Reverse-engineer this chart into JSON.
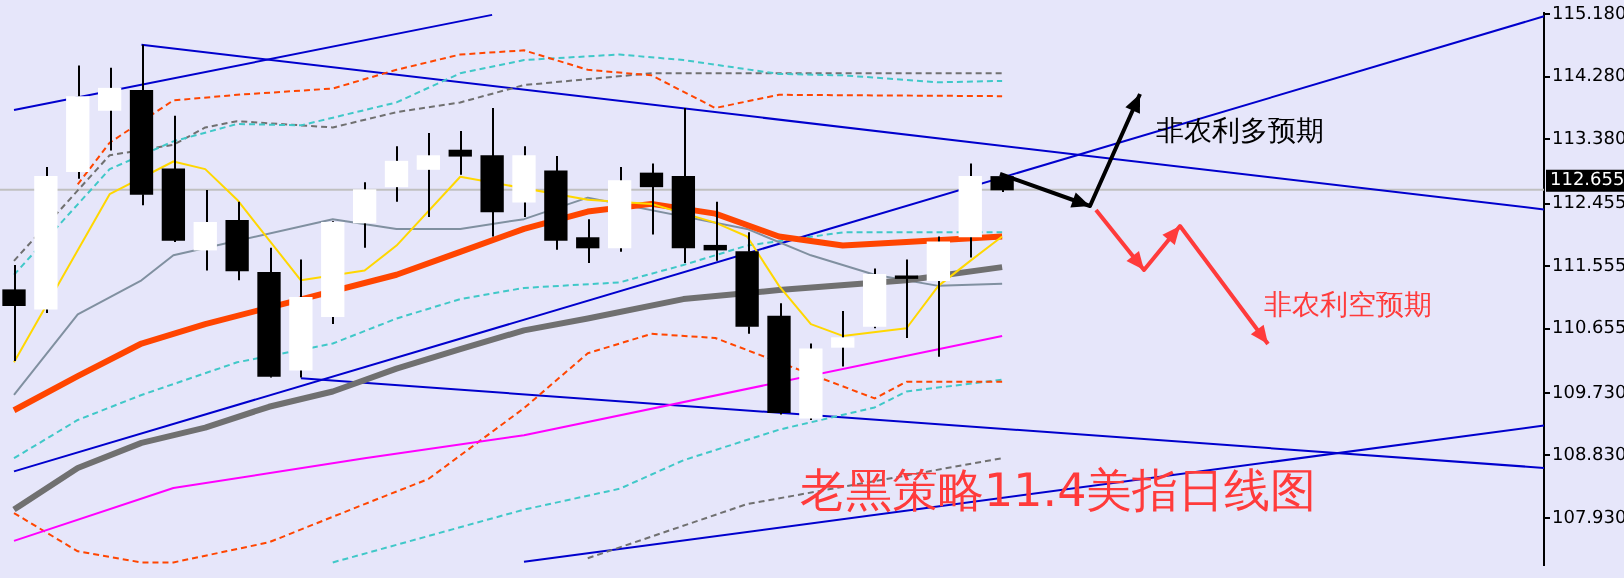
{
  "chart_data": {
    "type": "candlestick",
    "title": "老黑策略11.4美指日线图",
    "annotations": [
      "非农利多预期",
      "非农利空预期"
    ],
    "categories": [
      null,
      null,
      null,
      null,
      null,
      null,
      null,
      null,
      null,
      null,
      null,
      null,
      null,
      null,
      null,
      null,
      null,
      null,
      null,
      null,
      null,
      null,
      null,
      null,
      null,
      null,
      null,
      null,
      null,
      null,
      null,
      null,
      null,
      null,
      null,
      null,
      null,
      null,
      null,
      null,
      null,
      null,
      null,
      null,
      null,
      null,
      null,
      null,
      null
    ],
    "ohlc": [
      [
        111.21,
        111.57,
        110.19,
        110.99
      ],
      [
        110.94,
        112.98,
        110.88,
        112.84
      ],
      [
        112.92,
        114.44,
        112.81,
        113.99
      ],
      [
        113.8,
        114.41,
        113.22,
        114.11
      ],
      [
        114.08,
        114.74,
        112.43,
        112.59
      ],
      [
        112.95,
        113.72,
        111.9,
        111.93
      ],
      [
        111.79,
        112.65,
        111.49,
        112.18
      ],
      [
        112.21,
        112.48,
        111.35,
        111.49
      ],
      [
        111.46,
        111.82,
        109.95,
        109.97
      ],
      [
        110.06,
        111.65,
        109.95,
        111.1
      ],
      [
        110.83,
        112.2,
        110.72,
        112.18
      ],
      [
        112.18,
        112.76,
        111.82,
        112.65
      ],
      [
        112.7,
        113.28,
        112.48,
        113.06
      ],
      [
        112.95,
        113.47,
        112.26,
        113.14
      ],
      [
        113.22,
        113.5,
        112.87,
        113.14
      ],
      [
        113.14,
        113.83,
        111.98,
        112.34
      ],
      [
        112.48,
        113.28,
        112.26,
        113.14
      ],
      [
        112.92,
        113.14,
        111.79,
        111.93
      ],
      [
        111.96,
        112.23,
        111.6,
        111.82
      ],
      [
        111.82,
        112.98,
        111.76,
        112.78
      ],
      [
        112.89,
        113.03,
        112.01,
        112.7
      ],
      [
        112.84,
        113.83,
        111.6,
        111.82
      ],
      [
        111.85,
        112.48,
        111.63,
        111.79
      ],
      [
        111.76,
        112.04,
        110.58,
        110.69
      ],
      [
        110.83,
        111.02,
        109.42,
        109.45
      ],
      [
        109.37,
        110.44,
        109.34,
        110.36
      ],
      [
        110.39,
        110.91,
        110.11,
        110.52
      ],
      [
        110.69,
        111.52,
        110.66,
        111.43
      ],
      [
        111.41,
        111.65,
        110.52,
        111.38
      ],
      [
        111.35,
        111.98,
        110.25,
        111.9
      ],
      [
        111.98,
        113.03,
        111.68,
        112.84
      ],
      [
        112.84,
        112.87,
        112.62,
        112.655
      ],
      null,
      null,
      null,
      null,
      null,
      null,
      null,
      null,
      null,
      null,
      null,
      null,
      null,
      null,
      null,
      null,
      null
    ],
    "colors": [
      "#000000",
      "#ffffff",
      "#ffffff",
      "#ffffff",
      "#000000",
      "#000000",
      "#ffffff",
      "#000000",
      "#000000",
      "#ffffff",
      "#ffffff",
      "#ffffff",
      "#ffffff",
      "#ffffff",
      "#000000",
      "#000000",
      "#ffffff",
      "#000000",
      "#000000",
      "#ffffff",
      "#000000",
      "#000000",
      "#000000",
      "#000000",
      "#000000",
      "#ffffff",
      "#ffffff",
      "#ffffff",
      "#000000",
      "#ffffff",
      "#ffffff",
      "#000000",
      null,
      null,
      null,
      null,
      null,
      null,
      null,
      null,
      null,
      null,
      null,
      null,
      null,
      null,
      null,
      null,
      null
    ],
    "series": [
      {
        "type": "line",
        "color": "#ffd700",
        "values": [
          110.17,
          null,
          null,
          112.59,
          null,
          113.06,
          112.95,
          112.51,
          null,
          111.35,
          null,
          111.49,
          111.85,
          null,
          112.84,
          null,
          null,
          null,
          112.51,
          null,
          112.45,
          null,
          112.18,
          111.98,
          111.27,
          110.72,
          110.55,
          null,
          110.66,
          111.27,
          111.63,
          111.98,
          null,
          null,
          null,
          null,
          null,
          null,
          null,
          null,
          null,
          null,
          null,
          null,
          null,
          null,
          null,
          null,
          null
        ]
      },
      {
        "type": "line",
        "color": "#ff4500",
        "values": [
          109.48,
          null,
          109.97,
          null,
          110.44,
          null,
          110.72,
          null,
          null,
          null,
          null,
          null,
          111.43,
          null,
          111.76,
          null,
          112.09,
          null,
          112.34,
          null,
          112.45,
          null,
          112.31,
          null,
          111.98,
          null,
          111.85,
          null,
          111.9,
          null,
          null,
          111.98,
          null,
          null,
          null,
          null,
          null,
          null,
          null,
          null,
          null,
          null,
          null,
          null,
          null,
          null,
          null,
          null,
          null
        ]
      },
      {
        "type": "line",
        "color": "#707070",
        "values": [
          108.05,
          null,
          108.65,
          null,
          109.01,
          null,
          109.23,
          null,
          109.53,
          null,
          109.75,
          null,
          110.08,
          null,
          110.36,
          null,
          110.63,
          null,
          110.8,
          null,
          null,
          111.08,
          null,
          null,
          111.21,
          null,
          null,
          null,
          111.35,
          null,
          null,
          111.54,
          null,
          null,
          null,
          null,
          null,
          null,
          null,
          null,
          null,
          null,
          null,
          null,
          null,
          null,
          null,
          null,
          null
        ]
      },
      {
        "type": "line",
        "color": "#8090a0",
        "values": [
          109.7,
          null,
          110.86,
          null,
          111.35,
          111.71,
          null,
          null,
          null,
          null,
          112.23,
          null,
          112.09,
          null,
          112.09,
          null,
          112.23,
          null,
          112.54,
          null,
          null,
          null,
          null,
          112.09,
          null,
          111.71,
          null,
          111.43,
          null,
          111.27,
          null,
          111.3,
          null,
          null,
          null,
          null,
          null,
          null,
          null,
          null,
          null,
          null,
          null,
          null,
          null,
          null,
          null,
          null,
          null
        ]
      },
      {
        "type": "line",
        "color": "#ff00ff",
        "values": [
          107.6,
          null,
          null,
          null,
          null,
          108.36,
          null,
          null,
          null,
          null,
          null,
          108.79,
          null,
          null,
          null,
          null,
          109.12,
          null,
          null,
          null,
          null,
          null,
          null,
          null,
          null,
          null,
          null,
          null,
          null,
          null,
          null,
          110.55,
          null,
          null,
          null,
          null,
          null,
          null,
          null,
          null,
          null,
          null,
          null,
          null,
          null,
          null,
          null,
          null,
          null
        ]
      },
      {
        "type": "line",
        "color": "#ff4500",
        "line_style": "dashed",
        "values": [
          null,
          null,
          112.73,
          113.33,
          null,
          113.94,
          null,
          114.02,
          null,
          null,
          114.11,
          null,
          114.38,
          null,
          114.6,
          null,
          114.66,
          null,
          114.38,
          null,
          114.3,
          null,
          113.83,
          null,
          114.02,
          null,
          null,
          null,
          null,
          null,
          null,
          114.0,
          null,
          null,
          null,
          null,
          null,
          null,
          null,
          null,
          null,
          null,
          null,
          null,
          null,
          null,
          null,
          null,
          null
        ]
      },
      {
        "type": "line",
        "color": "#ff4500",
        "line_style": "dashed",
        "values": [
          108.0,
          null,
          107.45,
          null,
          107.29,
          107.29,
          null,
          null,
          107.58,
          null,
          null,
          108.13,
          null,
          108.49,
          null,
          null,
          109.51,
          null,
          110.3,
          null,
          110.58,
          null,
          110.52,
          null,
          null,
          null,
          null,
          109.65,
          109.89,
          null,
          null,
          109.89,
          null,
          null,
          null,
          null,
          null,
          null,
          null,
          null,
          null,
          null,
          null,
          null,
          null,
          null,
          null,
          null,
          null
        ]
      },
      {
        "type": "line",
        "color": "#40c8c8",
        "line_style": "dashed",
        "values": [
          111.43,
          null,
          null,
          112.95,
          null,
          113.35,
          null,
          113.6,
          null,
          113.58,
          null,
          null,
          113.91,
          null,
          114.33,
          null,
          114.52,
          null,
          null,
          114.6,
          null,
          114.52,
          null,
          null,
          114.32,
          null,
          114.3,
          null,
          null,
          114.2,
          null,
          114.22,
          null,
          null,
          null,
          null,
          null,
          null,
          null,
          null,
          null,
          null,
          null,
          null,
          null,
          null,
          null,
          null,
          null
        ]
      },
      {
        "type": "line",
        "color": "#40c8c8",
        "line_style": "dashed",
        "values": [
          108.79,
          null,
          109.34,
          null,
          109.7,
          null,
          null,
          110.17,
          null,
          null,
          110.44,
          null,
          110.8,
          null,
          111.08,
          null,
          111.24,
          null,
          null,
          111.32,
          null,
          111.57,
          null,
          111.85,
          null,
          null,
          112.04,
          null,
          null,
          null,
          null,
          112.04,
          null,
          null,
          null,
          null,
          null,
          null,
          null,
          null,
          null,
          null,
          null,
          null,
          null,
          null,
          null,
          null,
          null
        ]
      },
      {
        "type": "line",
        "color": "#40c8c8",
        "line_style": "dashed",
        "values": [
          null,
          null,
          null,
          null,
          null,
          null,
          null,
          null,
          null,
          null,
          107.29,
          null,
          null,
          null,
          null,
          null,
          108.05,
          null,
          null,
          108.35,
          null,
          108.76,
          null,
          null,
          109.2,
          null,
          null,
          109.52,
          109.75,
          null,
          null,
          109.92,
          null,
          null,
          null,
          null,
          null,
          null,
          null,
          null,
          null,
          null,
          null,
          null,
          null,
          null,
          null,
          null,
          null
        ]
      },
      {
        "type": "line",
        "color": "#707070",
        "line_style": "dashed",
        "values": [
          111.63,
          null,
          null,
          113.15,
          null,
          113.3,
          113.55,
          113.64,
          null,
          null,
          113.55,
          null,
          113.77,
          null,
          113.91,
          null,
          114.16,
          null,
          null,
          null,
          114.33,
          null,
          null,
          null,
          114.33,
          null,
          null,
          null,
          null,
          null,
          null,
          114.33,
          null,
          null,
          null,
          null,
          null,
          null,
          null,
          null,
          null,
          null,
          null,
          null,
          null,
          null,
          null,
          null,
          null
        ]
      },
      {
        "type": "line",
        "color": "#707070",
        "line_style": "dashed",
        "values": [
          null,
          null,
          null,
          null,
          null,
          null,
          null,
          null,
          null,
          null,
          null,
          null,
          null,
          null,
          null,
          null,
          null,
          null,
          107.35,
          null,
          null,
          null,
          null,
          108.13,
          null,
          null,
          null,
          null,
          null,
          null,
          null,
          108.79,
          null,
          null,
          null,
          null,
          null,
          null,
          null,
          null,
          null,
          null,
          null,
          null,
          null,
          null,
          null,
          null,
          null
        ]
      },
      {
        "type": "line",
        "color": "#0000cd",
        "values": [
          113.8,
          null,
          null,
          null,
          null,
          null,
          null,
          null,
          null,
          null,
          null,
          null,
          null,
          null,
          null,
          115.17,
          null,
          null,
          null,
          null,
          null,
          null,
          null,
          null,
          null,
          null,
          null,
          null,
          null,
          null,
          null,
          null,
          null,
          null,
          null,
          null,
          null,
          null,
          null,
          null,
          null,
          null,
          null,
          null,
          null,
          null,
          null,
          null,
          null
        ]
      },
      {
        "type": "line",
        "color": "#0000cd",
        "values": [
          null,
          null,
          null,
          null,
          114.74,
          null,
          null,
          null,
          null,
          null,
          null,
          null,
          null,
          null,
          null,
          null,
          null,
          null,
          null,
          null,
          null,
          null,
          null,
          null,
          null,
          null,
          null,
          null,
          null,
          null,
          null,
          null,
          null,
          null,
          null,
          null,
          null,
          null,
          null,
          null,
          null,
          null,
          null,
          null,
          null,
          null,
          null,
          null,
          112.37
        ]
      },
      {
        "type": "line",
        "color": "#0000cd",
        "values": [
          108.6,
          null,
          null,
          null,
          null,
          null,
          null,
          null,
          null,
          null,
          null,
          null,
          null,
          null,
          null,
          null,
          null,
          null,
          null,
          null,
          null,
          null,
          null,
          null,
          null,
          null,
          null,
          null,
          null,
          null,
          null,
          null,
          null,
          null,
          null,
          null,
          null,
          null,
          null,
          null,
          null,
          null,
          null,
          null,
          null,
          null,
          null,
          null,
          115.15
        ]
      },
      {
        "type": "line",
        "color": "#0000cd",
        "values": [
          null,
          null,
          null,
          null,
          null,
          null,
          null,
          null,
          null,
          109.94,
          null,
          null,
          null,
          null,
          null,
          null,
          null,
          null,
          null,
          null,
          null,
          null,
          null,
          null,
          null,
          null,
          null,
          null,
          null,
          null,
          null,
          null,
          null,
          null,
          null,
          null,
          null,
          null,
          null,
          null,
          null,
          null,
          null,
          null,
          null,
          null,
          null,
          null,
          108.65
        ]
      },
      {
        "type": "line",
        "color": "#0000cd",
        "values": [
          null,
          null,
          null,
          null,
          null,
          null,
          null,
          null,
          null,
          null,
          null,
          null,
          null,
          null,
          null,
          null,
          107.3,
          null,
          null,
          null,
          null,
          null,
          null,
          null,
          null,
          null,
          null,
          null,
          null,
          null,
          null,
          null,
          null,
          null,
          null,
          null,
          null,
          null,
          null,
          null,
          null,
          null,
          null,
          null,
          null,
          null,
          null,
          null,
          109.26
        ]
      }
    ],
    "ref_lines": [
      {
        "axis": "y",
        "value": 112.655,
        "label": "112.655",
        "color": "#c0c0c0"
      }
    ],
    "ylim": [
      107.25,
      115.2
    ],
    "yticks": [
      {
        "value": 107.93,
        "label": "107.930"
      },
      {
        "value": 108.83,
        "label": "108.830"
      },
      {
        "value": 109.73,
        "label": "109.730"
      },
      {
        "value": 110.655,
        "label": "110.655"
      },
      {
        "value": 111.555,
        "label": "111.555"
      },
      {
        "value": 112.455,
        "label": "112.455"
      },
      {
        "value": 113.38,
        "label": "113.380"
      },
      {
        "value": 114.28,
        "label": "114.280"
      },
      {
        "value": 115.18,
        "label": "115.180"
      }
    ],
    "tick_labels": "y",
    "grid": false,
    "legend": false,
    "marker": "none"
  }
}
